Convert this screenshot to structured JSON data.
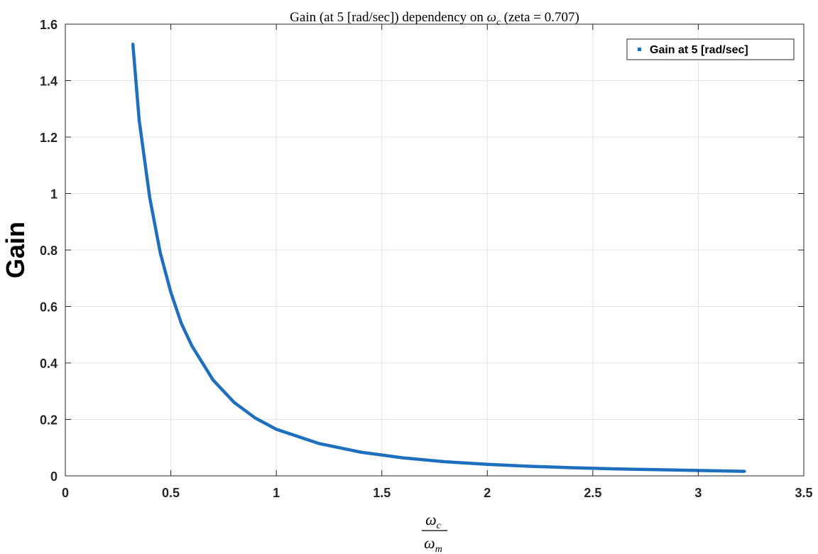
{
  "chart_data": {
    "type": "line",
    "title_prefix": "Gain (at 5 [rad/sec]) dependency on ",
    "title_symbol": "ω",
    "title_subscript": "c",
    "title_suffix": " (zeta = 0.707)",
    "ylabel": "Gain",
    "xlabel_numerator": "ω",
    "xlabel_numerator_sub": "c",
    "xlabel_denominator": "ω",
    "xlabel_denominator_sub": "m",
    "xlim": [
      0,
      3.5
    ],
    "ylim": [
      0,
      1.6
    ],
    "xticks": [
      0,
      0.5,
      1,
      1.5,
      2,
      2.5,
      3,
      3.5
    ],
    "xtick_labels": [
      "0",
      "0.5",
      "1",
      "1.5",
      "2",
      "2.5",
      "3",
      "3.5"
    ],
    "yticks": [
      0,
      0.2,
      0.4,
      0.6,
      0.8,
      1.0,
      1.2,
      1.4,
      1.6
    ],
    "ytick_labels": [
      "0",
      "0.2",
      "0.4",
      "0.6",
      "0.8",
      "1",
      "1.2",
      "1.4",
      "1.6"
    ],
    "grid": true,
    "legend_position": "top-right",
    "series": [
      {
        "name": "Gain at 5 [rad/sec]",
        "color": "#1f6fbf",
        "x": [
          0.32,
          0.35,
          0.4,
          0.45,
          0.5,
          0.55,
          0.6,
          0.7,
          0.8,
          0.9,
          1.0,
          1.2,
          1.4,
          1.6,
          1.8,
          2.0,
          2.2,
          2.4,
          2.6,
          2.8,
          3.0,
          3.22
        ],
        "y": [
          1.53,
          1.26,
          0.985,
          0.79,
          0.65,
          0.54,
          0.46,
          0.34,
          0.26,
          0.205,
          0.165,
          0.115,
          0.084,
          0.064,
          0.05,
          0.041,
          0.034,
          0.029,
          0.025,
          0.022,
          0.019,
          0.016
        ]
      }
    ]
  }
}
